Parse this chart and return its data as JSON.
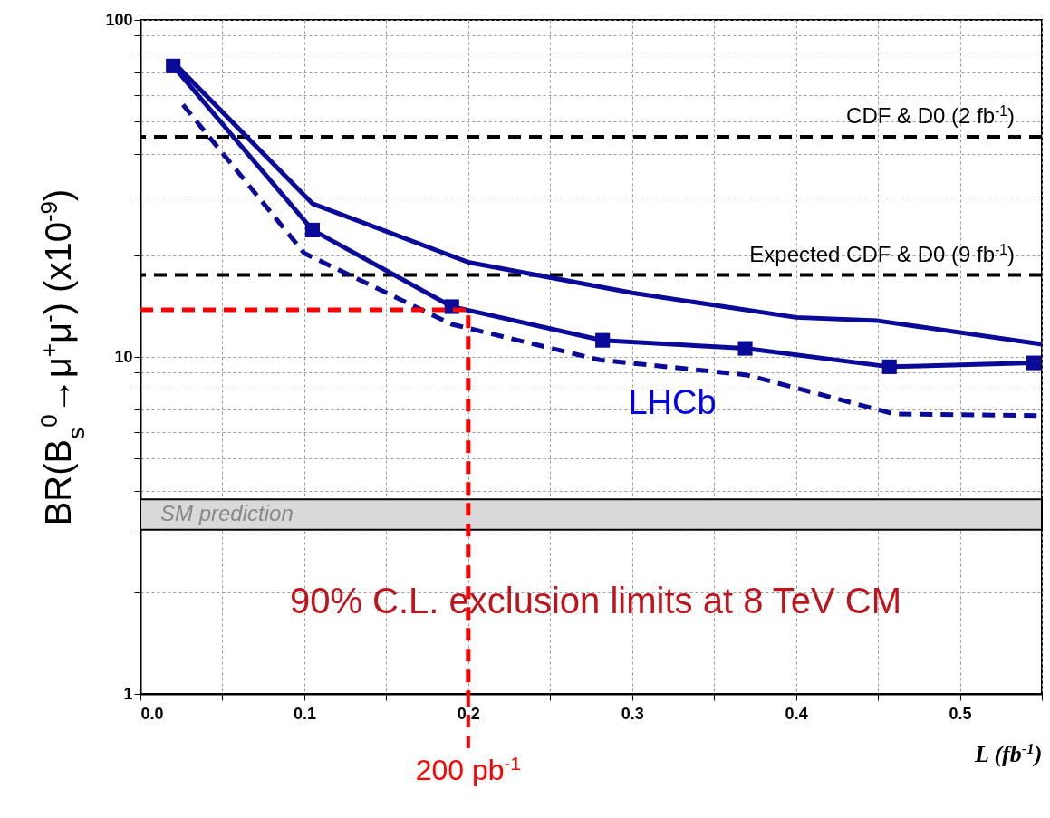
{
  "chart_data": {
    "type": "line",
    "ylabel": "BR(B$_{s}$$^{0}$→μ$^{+}$μ$^{-}$)  (x10$^{-9}$)",
    "xlabel": "L (fb$^{-1}$)",
    "log": "y",
    "grid": true,
    "xlim": [
      0,
      0.55
    ],
    "ylim": [
      1,
      100
    ],
    "xticks": [
      {
        "value": 0,
        "label": "0.0"
      },
      {
        "value": 0.05,
        "label": null
      },
      0.1,
      {
        "value": 0.15,
        "label": null
      },
      0.2,
      {
        "value": 0.25,
        "label": null
      },
      0.3,
      {
        "value": 0.35,
        "label": null
      },
      0.4,
      {
        "value": 0.45,
        "label": null
      },
      0.5,
      {
        "value": 0.55,
        "label": null
      }
    ],
    "yticks": [
      1,
      {
        "value": 2,
        "label": null
      },
      {
        "value": 3,
        "label": null
      },
      {
        "value": 4,
        "label": null
      },
      {
        "value": 5,
        "label": null
      },
      {
        "value": 6,
        "label": null
      },
      {
        "value": 7,
        "label": null
      },
      {
        "value": 8,
        "label": null
      },
      {
        "value": 9,
        "label": null
      },
      10,
      {
        "value": 20,
        "label": null
      },
      {
        "value": 30,
        "label": null
      },
      {
        "value": 40,
        "label": null
      },
      {
        "value": 50,
        "label": null
      },
      {
        "value": 60,
        "label": null
      },
      {
        "value": 70,
        "label": null
      },
      {
        "value": 80,
        "label": null
      },
      {
        "value": 90,
        "label": null
      },
      100
    ],
    "series": [
      {
        "color": "#0a0a9a",
        "line_style": "solid",
        "marker": "none",
        "x": [
          0.02,
          0.105,
          0.2,
          0.3,
          0.4,
          0.45,
          0.55
        ],
        "values": [
          75,
          28.5,
          19.1,
          15.5,
          13.1,
          12.8,
          10.9
        ]
      },
      {
        "color": "#0a0a9a",
        "line_style": "solid",
        "marker": "square",
        "x": [
          0.02,
          0.105,
          0.19,
          0.282,
          0.369,
          0.457,
          0.545
        ],
        "values": [
          73,
          23.8,
          14.1,
          11.2,
          10.6,
          9.35,
          9.6
        ]
      },
      {
        "color": "#0a0a9a",
        "line_style": "dashed",
        "marker": "none",
        "x": [
          0.026,
          0.1,
          0.19,
          0.28,
          0.37,
          0.46,
          0.55
        ],
        "values": [
          56,
          20.3,
          12.5,
          9.8,
          8.84,
          6.77,
          6.7
        ]
      },
      {
        "color": "#ff0000",
        "line_style": "dashed",
        "marker": "none",
        "x": [
          0,
          0.2,
          0.2
        ],
        "values": [
          13.8,
          13.8,
          1
        ]
      }
    ],
    "ref_lines": [
      {
        "axis": "y",
        "value": 45,
        "label": "CDF & D0 (2 fb$^{-1}$)",
        "color": "#000000",
        "line_style": "dashed"
      },
      {
        "axis": "y",
        "value": 17.5,
        "label": "Expected CDF & D0 (9 fb$^{-1}$)",
        "color": "#000000",
        "line_style": "dashed"
      },
      {
        "axis": "x",
        "value": 0.2,
        "label": "200 pb$^{-1}$",
        "color": "#ff0000",
        "line_style": "dashed"
      }
    ],
    "bands": [
      {
        "axis": "y",
        "from": 3.07,
        "to": 3.78,
        "label": "SM prediction",
        "color": "#d9d9d9"
      }
    ],
    "annotations": [
      "LHCb",
      "90% C.L. exclusion limits at 8 TeV CM"
    ]
  }
}
